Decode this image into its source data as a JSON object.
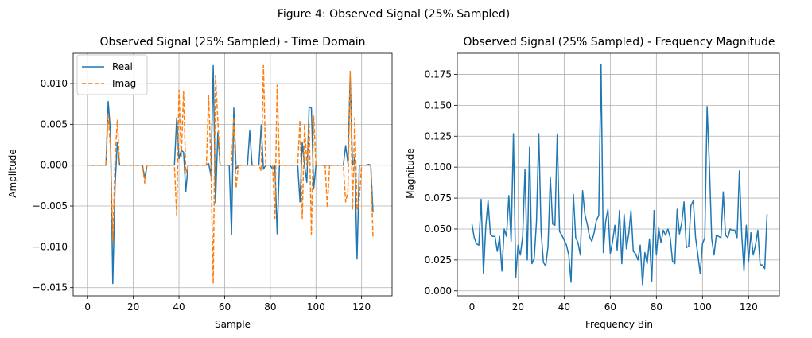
{
  "figure": {
    "title": "Figure 4: Observed Signal (25% Sampled)"
  },
  "colors": {
    "real": "#1f77b4",
    "imag": "#ff7f0e",
    "grid": "#b0b0b0",
    "axis": "#000000"
  },
  "chart_data": [
    {
      "type": "line",
      "title": "Observed Signal (25% Sampled) - Time Domain",
      "xlabel": "Sample",
      "ylabel": "Amplitude",
      "xlim": [
        -6.35,
        133.35
      ],
      "ylim": [
        -0.016,
        0.0137
      ],
      "xticks": [
        0,
        20,
        40,
        60,
        80,
        100,
        120
      ],
      "xtick_labels": [
        "0",
        "20",
        "40",
        "60",
        "80",
        "100",
        "120"
      ],
      "yticks": [
        -0.015,
        -0.01,
        -0.005,
        0.0,
        0.005,
        0.01
      ],
      "ytick_labels": [
        "−0.015",
        "−0.010",
        "−0.005",
        "0.000",
        "0.005",
        "0.010"
      ],
      "grid": true,
      "legend": "top-left",
      "series": [
        {
          "name": "Real",
          "style": "solid",
          "values": [
            0,
            0,
            0,
            0,
            0,
            0,
            0,
            0,
            0,
            0.0078,
            0.004,
            -0.0145,
            -0.0025,
            0.0028,
            0,
            0,
            0,
            0,
            0,
            0,
            0,
            0,
            0,
            0,
            0,
            -0.0016,
            0,
            0,
            0,
            0,
            0,
            0,
            0,
            0,
            0,
            0,
            0,
            0,
            0,
            0.0058,
            0.0008,
            0.0018,
            0.0016,
            -0.0032,
            0,
            0,
            0,
            0,
            0,
            0,
            0,
            0,
            0,
            0.0002,
            -0.0013,
            0.0122,
            -0.0046,
            0.004,
            0,
            0,
            0,
            0,
            0,
            -0.0085,
            0.007,
            -0.0005,
            0,
            0,
            0,
            0,
            0,
            0.0042,
            0,
            0,
            0,
            0,
            0.0049,
            -0.0005,
            0,
            0,
            0,
            -0.0005,
            0.0,
            -0.0084,
            0,
            0,
            0,
            0,
            0,
            0,
            0,
            0,
            0,
            -0.0045,
            0.0028,
            0,
            -0.0021,
            0.0071,
            0.007,
            -0.0029,
            0,
            0,
            0,
            0,
            0,
            0,
            0,
            0,
            0,
            0,
            0,
            0,
            0,
            0.0024,
            0.0003,
            0.011,
            0,
            0.0009,
            -0.0115,
            0,
            0,
            0,
            0,
            0.0001,
            0,
            -0.0058
          ]
        },
        {
          "name": "Imag",
          "style": "dashed",
          "values": [
            0,
            0,
            0,
            0,
            0,
            0,
            0,
            0,
            0,
            0.0063,
            0.002,
            -0.0093,
            0.0008,
            0.0055,
            0,
            0,
            0,
            0,
            0,
            0,
            0,
            0,
            0,
            0,
            0,
            -0.0022,
            0,
            0,
            0,
            0,
            0,
            0,
            0,
            0,
            0,
            0,
            0,
            0,
            0,
            -0.0062,
            0.0092,
            0.001,
            0.009,
            -0.001,
            0,
            0,
            0,
            0,
            0,
            0,
            0,
            0,
            0,
            0.0085,
            0,
            -0.0145,
            0.011,
            0.0055,
            0,
            0,
            0,
            0,
            0,
            0,
            0.0058,
            -0.0028,
            0,
            0,
            0,
            0,
            0,
            0,
            0,
            0,
            0,
            0,
            -0.0007,
            0.0122,
            0,
            0,
            0,
            0,
            -0.0065,
            0.0098,
            0,
            0,
            0,
            0,
            0,
            0,
            0,
            0,
            0,
            0.0055,
            -0.0065,
            0.005,
            0,
            0.0051,
            -0.0085,
            0.006,
            0,
            0,
            0,
            0,
            0,
            -0.0052,
            0,
            0,
            0,
            0,
            0,
            0,
            0,
            -0.0045,
            -0.0032,
            0.0115,
            -0.0055,
            0.0058,
            -0.0055,
            -0.0042,
            0,
            0,
            0,
            0,
            0,
            -0.0089
          ]
        }
      ]
    },
    {
      "type": "line",
      "title": "Observed Signal (25% Sampled) - Frequency Magnitude",
      "xlabel": "Frequency Bin",
      "ylabel": "Magnitude",
      "xlim": [
        -6.35,
        133.35
      ],
      "ylim": [
        -0.004,
        0.192
      ],
      "xticks": [
        0,
        20,
        40,
        60,
        80,
        100,
        120
      ],
      "xtick_labels": [
        "0",
        "20",
        "40",
        "60",
        "80",
        "100",
        "120"
      ],
      "yticks": [
        0.0,
        0.025,
        0.05,
        0.075,
        0.1,
        0.125,
        0.15,
        0.175
      ],
      "ytick_labels": [
        "0.000",
        "0.025",
        "0.050",
        "0.075",
        "0.100",
        "0.125",
        "0.150",
        "0.175"
      ],
      "grid": true,
      "series": [
        {
          "name": "Magnitude",
          "style": "solid",
          "values": [
            0.054,
            0.043,
            0.038,
            0.037,
            0.074,
            0.014,
            0.052,
            0.073,
            0.046,
            0.044,
            0.044,
            0.032,
            0.044,
            0.016,
            0.05,
            0.044,
            0.077,
            0.04,
            0.127,
            0.011,
            0.037,
            0.029,
            0.044,
            0.098,
            0.025,
            0.116,
            0.022,
            0.026,
            0.056,
            0.127,
            0.048,
            0.023,
            0.02,
            0.036,
            0.092,
            0.054,
            0.053,
            0.126,
            0.048,
            0.045,
            0.041,
            0.037,
            0.029,
            0.007,
            0.078,
            0.043,
            0.039,
            0.029,
            0.081,
            0.062,
            0.054,
            0.044,
            0.04,
            0.047,
            0.057,
            0.061,
            0.183,
            0.031,
            0.056,
            0.066,
            0.03,
            0.04,
            0.053,
            0.033,
            0.065,
            0.022,
            0.062,
            0.034,
            0.046,
            0.065,
            0.032,
            0.03,
            0.025,
            0.037,
            0.005,
            0.031,
            0.022,
            0.042,
            0.008,
            0.065,
            0.029,
            0.051,
            0.039,
            0.049,
            0.045,
            0.05,
            0.043,
            0.024,
            0.022,
            0.066,
            0.046,
            0.055,
            0.072,
            0.035,
            0.036,
            0.069,
            0.073,
            0.043,
            0.029,
            0.014,
            0.038,
            0.043,
            0.149,
            0.101,
            0.042,
            0.029,
            0.045,
            0.044,
            0.043,
            0.08,
            0.045,
            0.043,
            0.05,
            0.049,
            0.049,
            0.043,
            0.097,
            0.046,
            0.016,
            0.053,
            0.024,
            0.047,
            0.029,
            0.037,
            0.049,
            0.021,
            0.021,
            0.018,
            0.062
          ]
        }
      ]
    }
  ]
}
